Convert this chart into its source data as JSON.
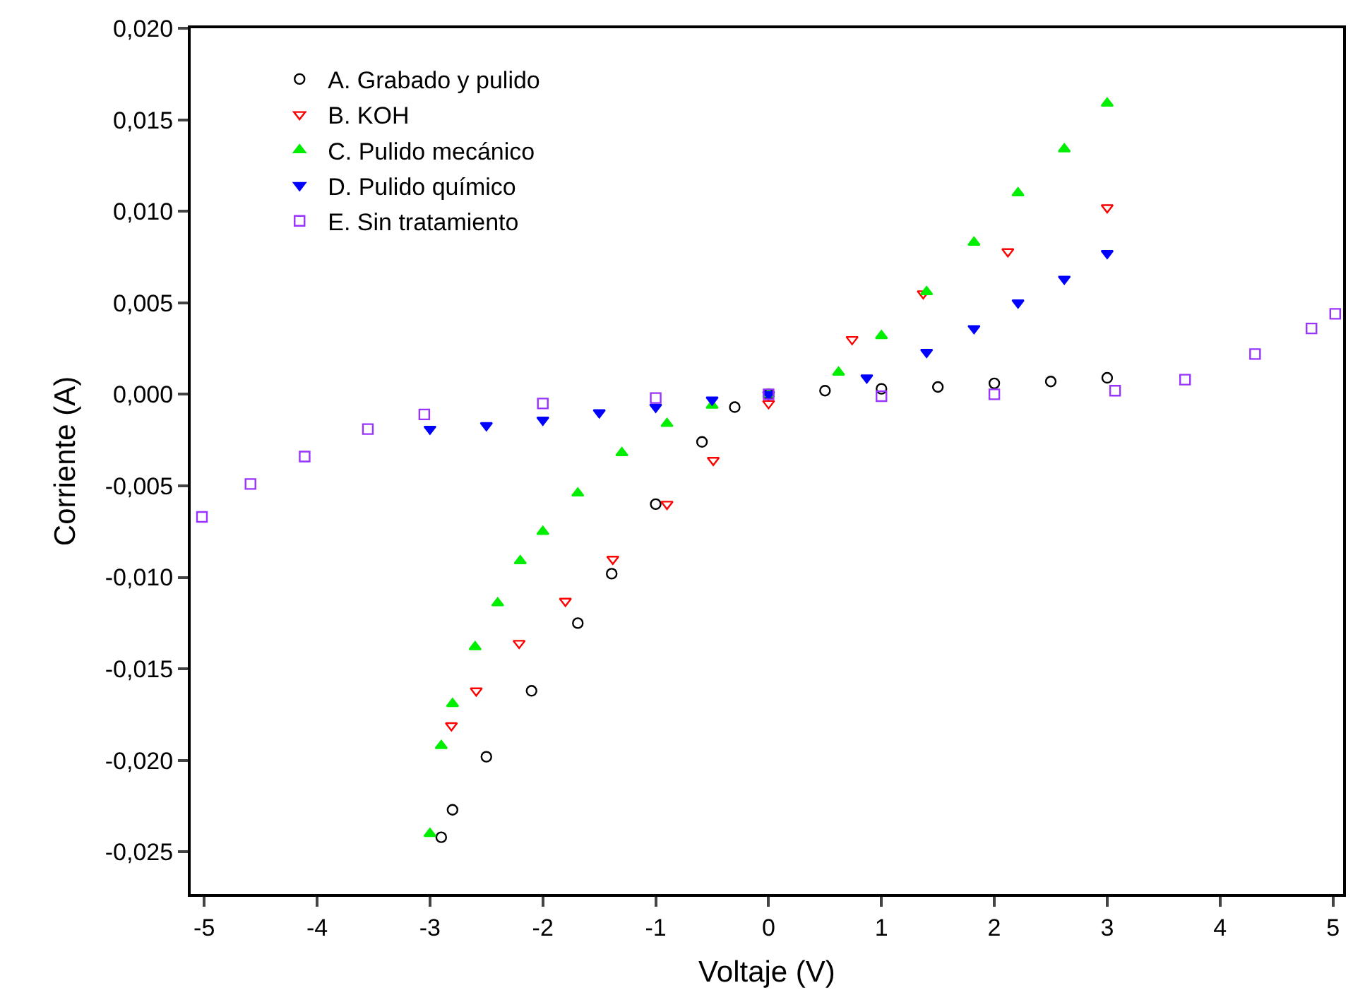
{
  "chart_data": {
    "type": "scatter",
    "xlabel": "Voltaje (V)",
    "ylabel": "Corriente (A)",
    "xlim": [
      -5.12,
      5.09
    ],
    "ylim": [
      -0.0273,
      0.02
    ],
    "xticks": [
      -5,
      -4,
      -3,
      -2,
      -1,
      0,
      1,
      2,
      3,
      4,
      5
    ],
    "yticks": [
      {
        "value": -0.025,
        "label": "-0,025"
      },
      {
        "value": -0.02,
        "label": "-0,020"
      },
      {
        "value": -0.015,
        "label": "-0,015"
      },
      {
        "value": -0.01,
        "label": "-0,010"
      },
      {
        "value": -0.005,
        "label": "-0,005"
      },
      {
        "value": 0,
        "label": "0,000"
      },
      {
        "value": 0.005,
        "label": "0,005"
      },
      {
        "value": 0.01,
        "label": "0,010"
      },
      {
        "value": 0.015,
        "label": "0,015"
      },
      {
        "value": 0.02,
        "label": "0,020"
      }
    ],
    "legend": "top left",
    "series": [
      {
        "name": "A. Grabado y pulido",
        "color": "#000000",
        "marker": "circle-open",
        "x": [
          -2.9,
          -2.8,
          -2.5,
          -2.1,
          -1.69,
          -1.39,
          -1.0,
          -0.59,
          -0.3,
          0,
          0.5,
          1,
          1.5,
          2,
          2.5,
          3
        ],
        "values": [
          -0.0242,
          -0.0227,
          -0.0198,
          -0.0162,
          -0.0125,
          -0.0098,
          -0.006,
          -0.0026,
          -0.0007,
          0,
          0.0002,
          0.0003,
          0.0004,
          0.0006,
          0.0007,
          0.0009
        ]
      },
      {
        "name": "B. KOH",
        "color": "#ff0000",
        "marker": "triangle-down-open",
        "x": [
          -2.81,
          -2.59,
          -2.21,
          -1.8,
          -1.38,
          -0.9,
          -0.49,
          0,
          0.74,
          1.37,
          2.12,
          3.0
        ],
        "values": [
          -0.0181,
          -0.0162,
          -0.0136,
          -0.0113,
          -0.009,
          -0.006,
          -0.0036,
          -0.0005,
          0.003,
          0.0055,
          0.0078,
          0.0102
        ]
      },
      {
        "name": "C. Pulido mecánico",
        "color": "#00ee00",
        "marker": "triangle-up",
        "x": [
          -3.0,
          -2.9,
          -2.8,
          -2.6,
          -2.4,
          -2.2,
          -2.0,
          -1.69,
          -1.3,
          -0.9,
          -0.5,
          0,
          0.62,
          1.0,
          1.4,
          1.82,
          2.21,
          2.62,
          3.0
        ],
        "values": [
          -0.024,
          -0.0192,
          -0.0169,
          -0.0138,
          -0.0114,
          -0.0091,
          -0.0075,
          -0.0054,
          -0.0032,
          -0.0016,
          -0.0006,
          0,
          0.0012,
          0.0032,
          0.0056,
          0.0083,
          0.011,
          0.0134,
          0.0159
        ]
      },
      {
        "name": "D. Pulido químico",
        "color": "#0000ff",
        "marker": "triangle-down",
        "x": [
          -3.0,
          -2.5,
          -2.0,
          -1.5,
          -1.0,
          -0.5,
          0,
          0.87,
          1.4,
          1.82,
          2.21,
          2.62,
          3.0
        ],
        "values": [
          -0.0019,
          -0.0017,
          -0.0014,
          -0.001,
          -0.0007,
          -0.0003,
          0,
          0.0009,
          0.0023,
          0.0036,
          0.005,
          0.0063,
          0.0077
        ]
      },
      {
        "name": "E. Sin tratamiento",
        "color": "#9933ff",
        "marker": "square-open",
        "x": [
          -5.02,
          -4.59,
          -4.11,
          -3.55,
          -3.05,
          -2.0,
          -1.0,
          0,
          1.0,
          2.0,
          3.07,
          3.69,
          4.31,
          4.81,
          5.02
        ],
        "values": [
          -0.0067,
          -0.0049,
          -0.0034,
          -0.0019,
          -0.0011,
          -0.0005,
          -0.0002,
          0,
          -0.0001,
          0,
          0.0002,
          0.0008,
          0.0022,
          0.0036,
          0.0044
        ]
      }
    ]
  }
}
